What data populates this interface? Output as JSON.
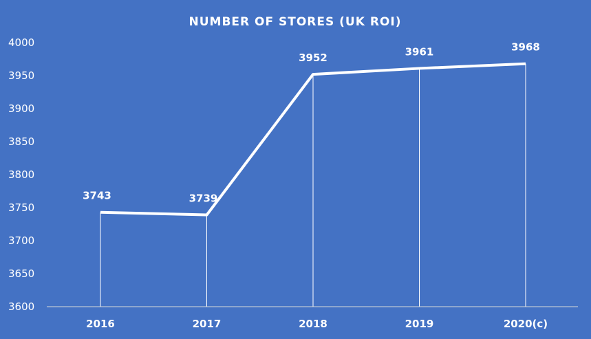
{
  "chart_data": {
    "type": "line",
    "title": "NUMBER OF STORES (UK ROI)",
    "categories": [
      "2016",
      "2017",
      "2018",
      "2019",
      "2020(c)"
    ],
    "values": [
      3743,
      3739,
      3952,
      3961,
      3968
    ],
    "data_labels": [
      "3743",
      "3739",
      "3952",
      "3961",
      "3968"
    ],
    "xlabel": "",
    "ylabel": "",
    "ylim": [
      3600,
      4000
    ],
    "yticks": [
      "3600",
      "3650",
      "3700",
      "3750",
      "3800",
      "3850",
      "3900",
      "3950",
      "4000"
    ],
    "grid": false,
    "drop_lines": true,
    "legend": "none",
    "colors": {
      "background": "#4472C4",
      "line": "#FFFFFF",
      "text": "#FFFFFF"
    }
  }
}
